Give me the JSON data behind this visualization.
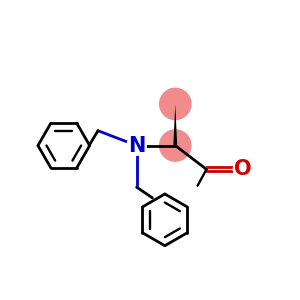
{
  "bg_color": "#ffffff",
  "bond_color": "#000000",
  "nitrogen_color": "#0000cc",
  "oxygen_color": "#cc0000",
  "highlight_color": "#f08080",
  "highlight_alpha": 0.9,
  "lw": 2.0
}
